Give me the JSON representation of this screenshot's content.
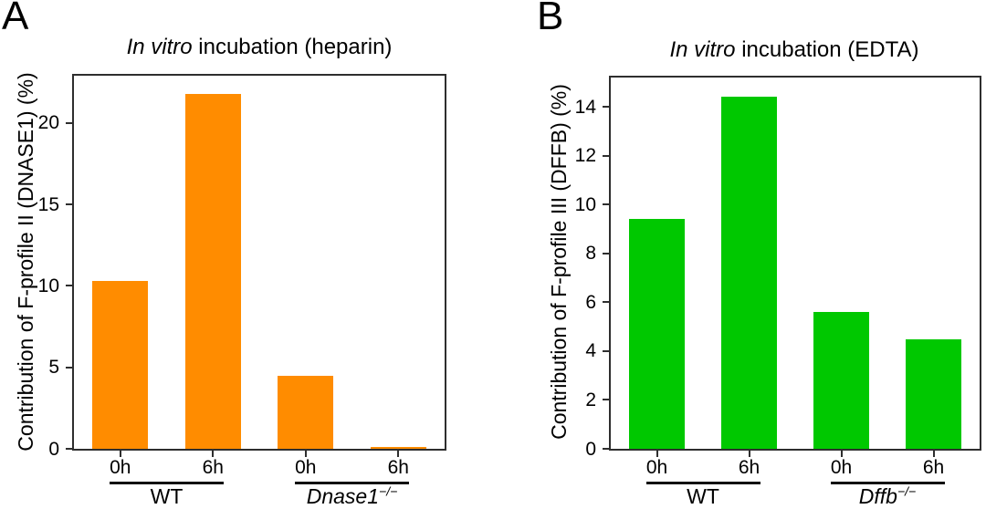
{
  "chart_data": [
    {
      "type": "bar",
      "panel_letter": "A",
      "title": "In vitro incubation (heparin)",
      "title_italic": "In vitro",
      "title_rest": " incubation (heparin)",
      "ylabel": "Contribution of F-profile II (DNASE1) (%)",
      "xlabel": "",
      "categories": [
        "0h",
        "6h",
        "0h",
        "6h"
      ],
      "values": [
        10.3,
        21.8,
        4.5,
        0.1
      ],
      "yticks": [
        0,
        5,
        10,
        15,
        20
      ],
      "ylim": [
        0,
        22.9
      ],
      "bar_color": "#FF8C00",
      "bar_width_frac": 0.6,
      "grid": "off",
      "legend": "none",
      "groups": [
        {
          "label": "WT",
          "sup": "",
          "italic": false,
          "from": 0,
          "to": 1
        },
        {
          "label": "Dnase1",
          "sup": "−/−",
          "italic": true,
          "from": 2,
          "to": 3
        }
      ]
    },
    {
      "type": "bar",
      "panel_letter": "B",
      "title": "In vitro incubation (EDTA)",
      "title_italic": "In vitro",
      "title_rest": " incubation (EDTA)",
      "ylabel": "Contribution of F-profile III (DFFB) (%)",
      "xlabel": "",
      "categories": [
        "0h",
        "6h",
        "0h",
        "6h"
      ],
      "values": [
        9.4,
        14.4,
        5.6,
        4.5
      ],
      "yticks": [
        0,
        2,
        4,
        6,
        8,
        10,
        12,
        14
      ],
      "ylim": [
        0,
        15.2
      ],
      "bar_color": "#00C800",
      "bar_width_frac": 0.6,
      "grid": "off",
      "legend": "none",
      "groups": [
        {
          "label": "WT",
          "sup": "",
          "italic": false,
          "from": 0,
          "to": 1
        },
        {
          "label": "Dffb",
          "sup": "−/−",
          "italic": true,
          "from": 2,
          "to": 3
        }
      ]
    }
  ]
}
